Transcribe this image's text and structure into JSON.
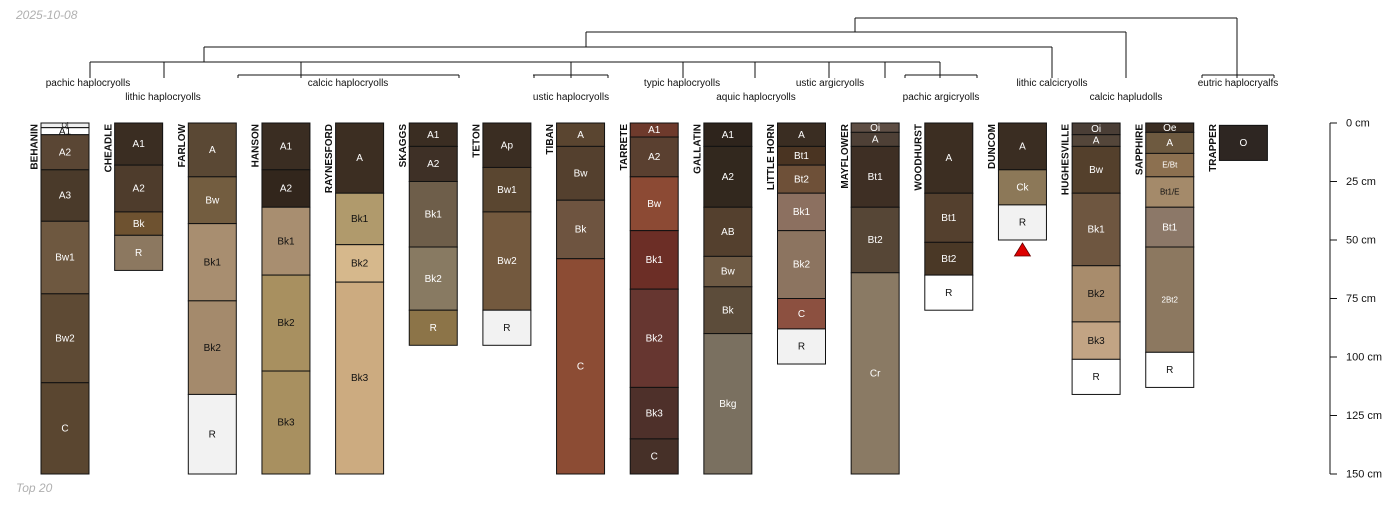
{
  "date_label": "2025-10-08",
  "footer_label": "Top 20",
  "depth_axis": {
    "unit": "cm",
    "max": 150,
    "ticks": [
      {
        "value": 0,
        "label": "0 cm"
      },
      {
        "value": 25,
        "label": "25 cm"
      },
      {
        "value": 50,
        "label": "50 cm"
      },
      {
        "value": 75,
        "label": "75 cm"
      },
      {
        "value": 100,
        "label": "100 cm"
      },
      {
        "value": 125,
        "label": "125 cm"
      },
      {
        "value": 150,
        "label": "150 cm"
      }
    ]
  },
  "profiles": [
    {
      "name": "BEHANIN",
      "horizons": [
        {
          "label": "Oi",
          "top": 0,
          "bottom": 2,
          "color": "#efefef"
        },
        {
          "label": "A1",
          "top": 2,
          "bottom": 5,
          "color": "#ffffff"
        },
        {
          "label": "A2",
          "top": 5,
          "bottom": 20,
          "color": "#5a4634"
        },
        {
          "label": "A3",
          "top": 20,
          "bottom": 42,
          "color": "#4a3a2a"
        },
        {
          "label": "Bw1",
          "top": 42,
          "bottom": 73,
          "color": "#6e5840"
        },
        {
          "label": "Bw2",
          "top": 73,
          "bottom": 111,
          "color": "#5e4a34"
        },
        {
          "label": "C",
          "top": 111,
          "bottom": 150,
          "color": "#5a4630"
        }
      ]
    },
    {
      "name": "CHEADLE",
      "horizons": [
        {
          "label": "A1",
          "top": 0,
          "bottom": 18,
          "color": "#3a2d22"
        },
        {
          "label": "A2",
          "top": 18,
          "bottom": 38,
          "color": "#4e3c2c"
        },
        {
          "label": "Bk",
          "top": 38,
          "bottom": 48,
          "color": "#6e5230"
        },
        {
          "label": "R",
          "top": 48,
          "bottom": 63,
          "color": "#8c7860"
        }
      ]
    },
    {
      "name": "FARLOW",
      "horizons": [
        {
          "label": "A",
          "top": 0,
          "bottom": 23,
          "color": "#5a4834"
        },
        {
          "label": "Bw",
          "top": 23,
          "bottom": 43,
          "color": "#735d40"
        },
        {
          "label": "Bk1",
          "top": 43,
          "bottom": 76,
          "color": "#a88e70"
        },
        {
          "label": "Bk2",
          "top": 76,
          "bottom": 116,
          "color": "#a48a6c"
        },
        {
          "label": "R",
          "top": 116,
          "bottom": 150,
          "color": "#f2f2f2"
        }
      ]
    },
    {
      "name": "HANSON",
      "horizons": [
        {
          "label": "A1",
          "top": 0,
          "bottom": 20,
          "color": "#3a2d22"
        },
        {
          "label": "A2",
          "top": 20,
          "bottom": 36,
          "color": "#32261c"
        },
        {
          "label": "Bk1",
          "top": 36,
          "bottom": 65,
          "color": "#a88e70"
        },
        {
          "label": "Bk2",
          "top": 65,
          "bottom": 106,
          "color": "#a89060"
        },
        {
          "label": "Bk3",
          "top": 106,
          "bottom": 150,
          "color": "#a89060"
        }
      ]
    },
    {
      "name": "RAYNESFORD",
      "horizons": [
        {
          "label": "A",
          "top": 0,
          "bottom": 30,
          "color": "#3c2e22"
        },
        {
          "label": "Bk1",
          "top": 30,
          "bottom": 52,
          "color": "#b09a6c"
        },
        {
          "label": "Bk2",
          "top": 52,
          "bottom": 68,
          "color": "#d6b88c"
        },
        {
          "label": "Bk3",
          "top": 68,
          "bottom": 150,
          "color": "#ccab80"
        }
      ]
    },
    {
      "name": "SKAGGS",
      "horizons": [
        {
          "label": "A1",
          "top": 0,
          "bottom": 10,
          "color": "#3a2d22"
        },
        {
          "label": "A2",
          "top": 10,
          "bottom": 25,
          "color": "#3e3026"
        },
        {
          "label": "Bk1",
          "top": 25,
          "bottom": 53,
          "color": "#6e5e4a"
        },
        {
          "label": "Bk2",
          "top": 53,
          "bottom": 80,
          "color": "#887a62"
        },
        {
          "label": "R",
          "top": 80,
          "bottom": 95,
          "color": "#8c7448"
        }
      ]
    },
    {
      "name": "TETON",
      "horizons": [
        {
          "label": "Ap",
          "top": 0,
          "bottom": 19,
          "color": "#3a2d22"
        },
        {
          "label": "Bw1",
          "top": 19,
          "bottom": 38,
          "color": "#5a4630"
        },
        {
          "label": "Bw2",
          "top": 38,
          "bottom": 80,
          "color": "#73593e"
        },
        {
          "label": "R",
          "top": 80,
          "bottom": 95,
          "color": "#f2f2f2"
        }
      ]
    },
    {
      "name": "TIBAN",
      "horizons": [
        {
          "label": "A",
          "top": 0,
          "bottom": 10,
          "color": "#5a4530"
        },
        {
          "label": "Bw",
          "top": 10,
          "bottom": 33,
          "color": "#54402e"
        },
        {
          "label": "Bk",
          "top": 33,
          "bottom": 58,
          "color": "#6e5440"
        },
        {
          "label": "C",
          "top": 58,
          "bottom": 150,
          "color": "#8c4c34"
        }
      ]
    },
    {
      "name": "TARRETE",
      "horizons": [
        {
          "label": "A1",
          "top": 0,
          "bottom": 6,
          "color": "#6e3a2c"
        },
        {
          "label": "A2",
          "top": 6,
          "bottom": 23,
          "color": "#5a4030"
        },
        {
          "label": "Bw",
          "top": 23,
          "bottom": 46,
          "color": "#8c4a34"
        },
        {
          "label": "Bk1",
          "top": 46,
          "bottom": 71,
          "color": "#6c2e26"
        },
        {
          "label": "Bk2",
          "top": 71,
          "bottom": 113,
          "color": "#663630"
        },
        {
          "label": "Bk3",
          "top": 113,
          "bottom": 135,
          "color": "#4e302a"
        },
        {
          "label": "C",
          "top": 135,
          "bottom": 150,
          "color": "#463028"
        }
      ]
    },
    {
      "name": "GALLATIN",
      "horizons": [
        {
          "label": "A1",
          "top": 0,
          "bottom": 10,
          "color": "#2e241c"
        },
        {
          "label": "A2",
          "top": 10,
          "bottom": 36,
          "color": "#32281e"
        },
        {
          "label": "AB",
          "top": 36,
          "bottom": 57,
          "color": "#54402e"
        },
        {
          "label": "Bw",
          "top": 57,
          "bottom": 70,
          "color": "#6e5a44"
        },
        {
          "label": "Bk",
          "top": 70,
          "bottom": 90,
          "color": "#5c4c3a"
        },
        {
          "label": "Bkg",
          "top": 90,
          "bottom": 150,
          "color": "#7a7060"
        }
      ]
    },
    {
      "name": "LITTLE HORN",
      "horizons": [
        {
          "label": "A",
          "top": 0,
          "bottom": 10,
          "color": "#3a2d22"
        },
        {
          "label": "Bt1",
          "top": 10,
          "bottom": 18,
          "color": "#4a3422"
        },
        {
          "label": "Bt2",
          "top": 18,
          "bottom": 30,
          "color": "#6e5038"
        },
        {
          "label": "Bk1",
          "top": 30,
          "bottom": 46,
          "color": "#8c7060"
        },
        {
          "label": "Bk2",
          "top": 46,
          "bottom": 75,
          "color": "#8c7460"
        },
        {
          "label": "C",
          "top": 75,
          "bottom": 88,
          "color": "#8c5040"
        },
        {
          "label": "R",
          "top": 88,
          "bottom": 103,
          "color": "#f2f2f2"
        }
      ]
    },
    {
      "name": "MAYFLOWER",
      "horizons": [
        {
          "label": "Oi",
          "top": 0,
          "bottom": 4,
          "color": "#5e4e44"
        },
        {
          "label": "A",
          "top": 4,
          "bottom": 10,
          "color": "#4e4036"
        },
        {
          "label": "Bt1",
          "top": 10,
          "bottom": 36,
          "color": "#3e2f24"
        },
        {
          "label": "Bt2",
          "top": 36,
          "bottom": 64,
          "color": "#564636"
        },
        {
          "label": "Cr",
          "top": 64,
          "bottom": 150,
          "color": "#8a7a64"
        }
      ]
    },
    {
      "name": "WOODHURST",
      "horizons": [
        {
          "label": "A",
          "top": 0,
          "bottom": 30,
          "color": "#3c2e22"
        },
        {
          "label": "Bt1",
          "top": 30,
          "bottom": 51,
          "color": "#54402e"
        },
        {
          "label": "Bt2",
          "top": 51,
          "bottom": 65,
          "color": "#4a3826"
        },
        {
          "label": "R",
          "top": 65,
          "bottom": 80,
          "color": "#ffffff"
        }
      ]
    },
    {
      "name": "DUNCOM",
      "horizons": [
        {
          "label": "A",
          "top": 0,
          "bottom": 20,
          "color": "#3a2d22"
        },
        {
          "label": "Ck",
          "top": 20,
          "bottom": 35,
          "color": "#8c7858"
        },
        {
          "label": "R",
          "top": 35,
          "bottom": 50,
          "color": "#f2f2f2"
        }
      ]
    },
    {
      "name": "HUGHESVILLE",
      "horizons": [
        {
          "label": "Oi",
          "top": 0,
          "bottom": 5,
          "color": "#4a3e36"
        },
        {
          "label": "A",
          "top": 5,
          "bottom": 10,
          "color": "#54463a"
        },
        {
          "label": "Bw",
          "top": 10,
          "bottom": 30,
          "color": "#54402c"
        },
        {
          "label": "Bk1",
          "top": 30,
          "bottom": 61,
          "color": "#6e5640"
        },
        {
          "label": "Bk2",
          "top": 61,
          "bottom": 85,
          "color": "#a88c6c"
        },
        {
          "label": "Bk3",
          "top": 85,
          "bottom": 101,
          "color": "#c2a484"
        },
        {
          "label": "R",
          "top": 101,
          "bottom": 116,
          "color": "#ffffff"
        }
      ]
    },
    {
      "name": "SAPPHIRE",
      "horizons": [
        {
          "label": "Oe",
          "top": 0,
          "bottom": 4,
          "color": "#3a2d22"
        },
        {
          "label": "A",
          "top": 4,
          "bottom": 13,
          "color": "#6e5a40"
        },
        {
          "label": "E/Bt",
          "top": 13,
          "bottom": 23,
          "color": "#8c7050"
        },
        {
          "label": "Bt1/E",
          "top": 23,
          "bottom": 36,
          "color": "#a48a6a"
        },
        {
          "label": "Bt1",
          "top": 36,
          "bottom": 53,
          "color": "#8c7868"
        },
        {
          "label": "2Bt2",
          "top": 53,
          "bottom": 98,
          "color": "#8c7860"
        },
        {
          "label": "R",
          "top": 98,
          "bottom": 113,
          "color": "#ffffff"
        }
      ]
    },
    {
      "name": "TRAPPER",
      "horizons": [
        {
          "label": "O",
          "top": 1,
          "bottom": 16,
          "color": "#2e2622"
        }
      ]
    }
  ],
  "groups": [
    {
      "label": "pachic haplocryolls",
      "members": [
        "BEHANIN"
      ]
    },
    {
      "label": "lithic haplocryolls",
      "members": [
        "CHEADLE"
      ]
    },
    {
      "label": "calcic haplocryolls",
      "members": [
        "FARLOW",
        "HANSON",
        "RAYNESFORD",
        "SKAGGS"
      ]
    },
    {
      "label": "ustic haplocryolls",
      "members": [
        "TETON",
        "TIBAN"
      ]
    },
    {
      "label": "typic haplocryolls",
      "members": [
        "TARRETE"
      ]
    },
    {
      "label": "aquic haplocryolls",
      "members": [
        "GALLATIN"
      ]
    },
    {
      "label": "ustic argicryolls",
      "members": [
        "LITTLE HORN"
      ]
    },
    {
      "label": "pachic argicryolls",
      "members": [
        "MAYFLOWER",
        "WOODHURST"
      ]
    },
    {
      "label": "lithic calcicryolls",
      "members": [
        "DUNCOM"
      ]
    },
    {
      "label": "calcic hapludolls",
      "members": [
        "HUGHESVILLE"
      ]
    },
    {
      "label": "eutric haplocryalfs",
      "members": [
        "SAPPHIRE",
        "TRAPPER"
      ]
    }
  ],
  "marker": {
    "profile": "DUNCOM",
    "symbol": "red triangle",
    "color": "#dd0000"
  }
}
